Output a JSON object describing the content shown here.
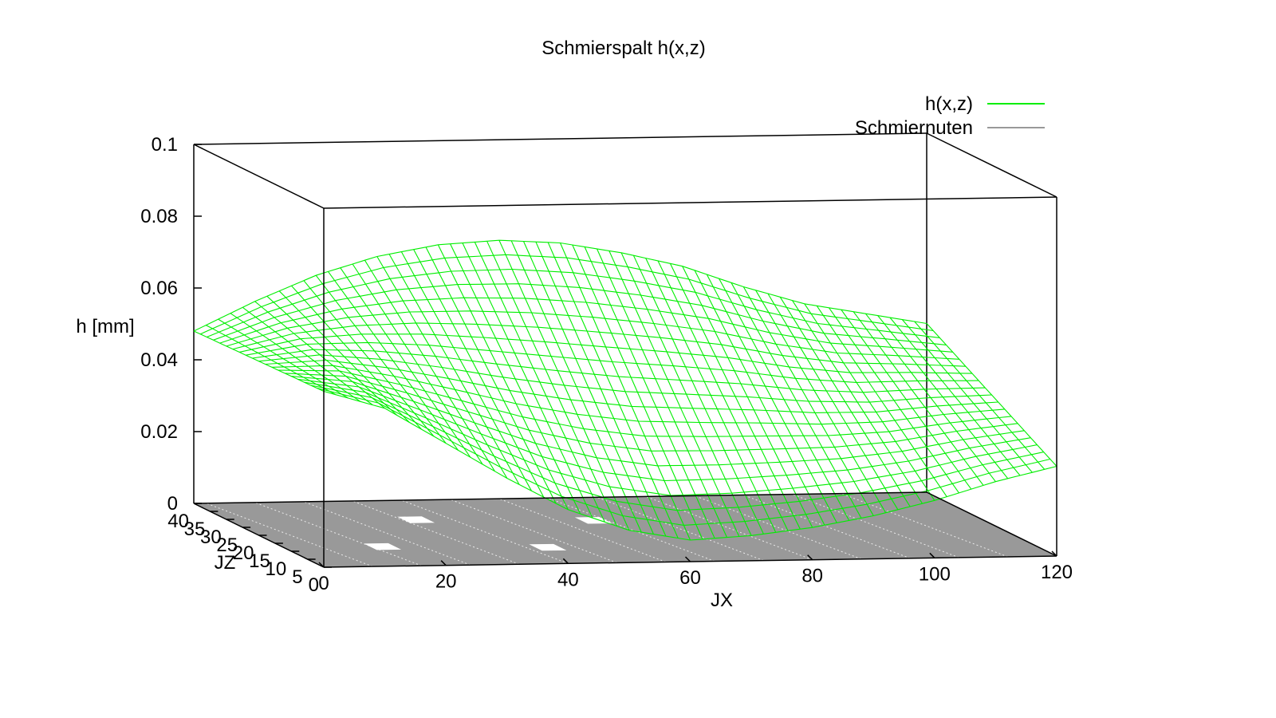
{
  "chart_data": {
    "type": "surface",
    "title": "Schmierspalt h(x,z)",
    "xlabel": "JX",
    "ylabel": "JZ",
    "zlabel": "h [mm]",
    "xlim": [
      0,
      120
    ],
    "ylim": [
      0,
      40
    ],
    "zlim": [
      0,
      0.1
    ],
    "x_ticks": [
      "0",
      "20",
      "40",
      "60",
      "80",
      "100",
      "120"
    ],
    "y_ticks": [
      "0",
      "5",
      "10",
      "15",
      "20",
      "25",
      "30",
      "35",
      "40"
    ],
    "z_ticks": [
      "0",
      "0.02",
      "0.04",
      "0.06",
      "0.08",
      "0.1"
    ],
    "grid": false,
    "legend_position": "top-right",
    "series": [
      {
        "name": "h(x,z)",
        "color": "#00ee00",
        "surface_profile_at_front_edge": {
          "x": [
            0,
            10,
            20,
            30,
            40,
            50,
            60,
            70,
            80,
            90,
            100,
            110,
            120
          ],
          "h": [
            0.049,
            0.044,
            0.034,
            0.024,
            0.015,
            0.009,
            0.006,
            0.007,
            0.009,
            0.012,
            0.016,
            0.021,
            0.025
          ]
        },
        "surface_profile_at_back_edge": {
          "x": [
            0,
            10,
            20,
            30,
            40,
            50,
            60,
            70,
            80,
            90,
            100,
            110,
            120
          ],
          "h": [
            0.048,
            0.056,
            0.063,
            0.068,
            0.071,
            0.072,
            0.071,
            0.068,
            0.064,
            0.058,
            0.053,
            0.05,
            0.047
          ]
        }
      },
      {
        "name": "Schmiernuten",
        "color": "#999999"
      }
    ]
  }
}
